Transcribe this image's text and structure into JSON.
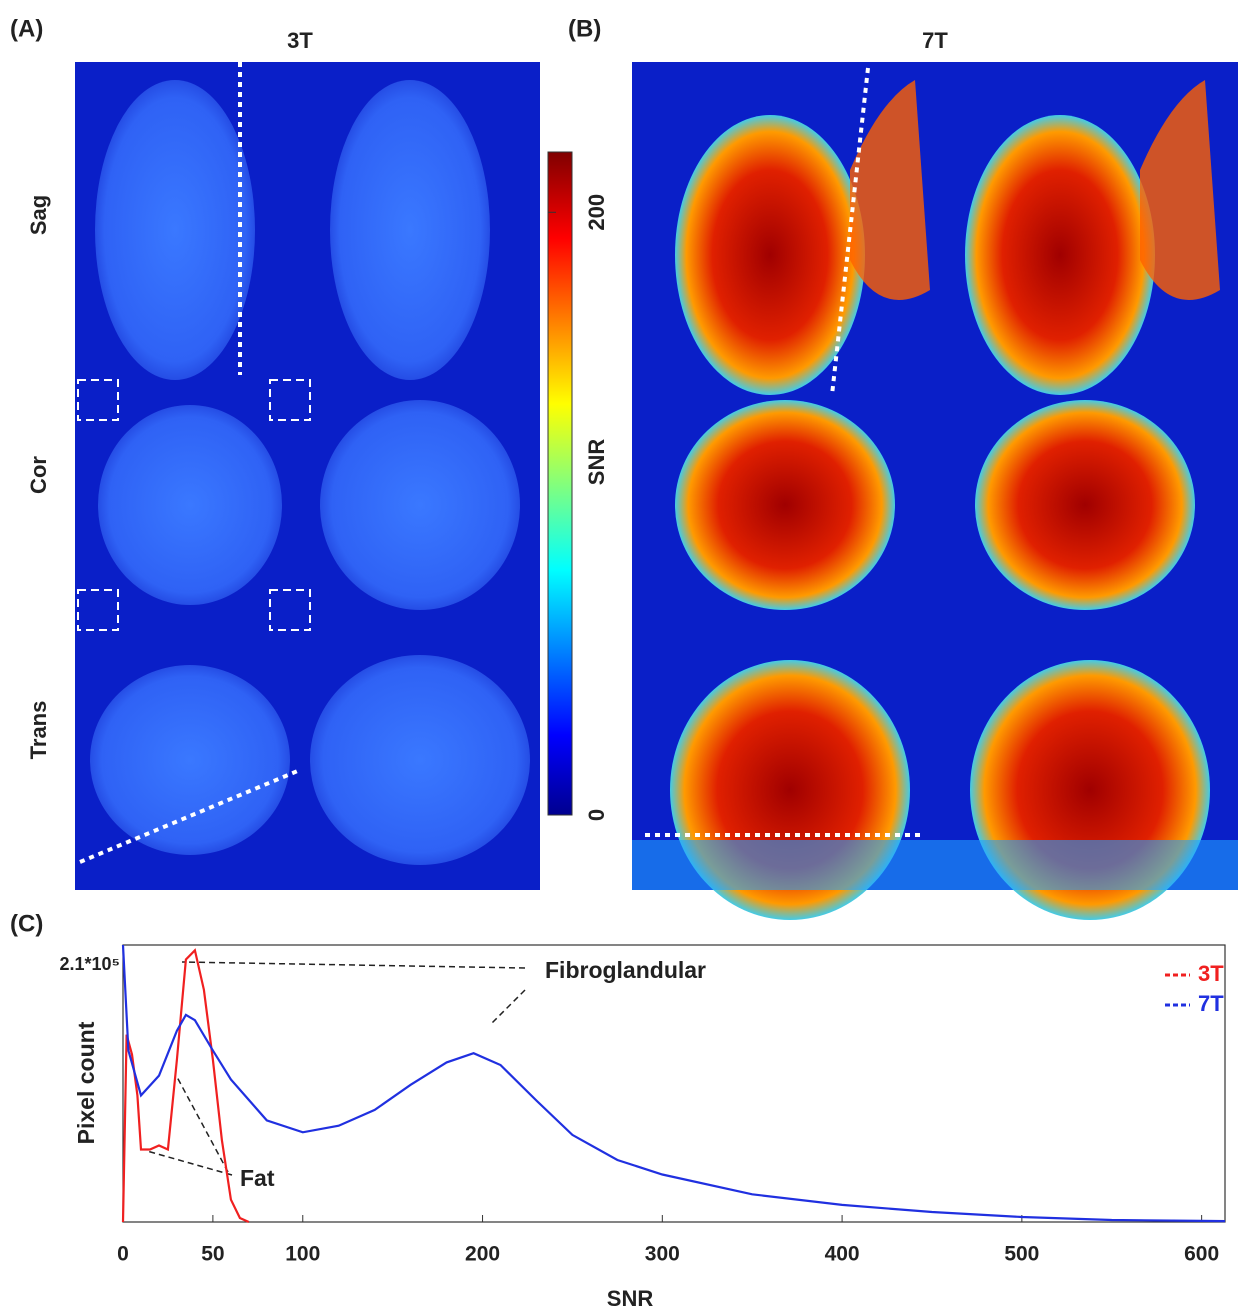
{
  "panels": {
    "a": {
      "label": "(A)",
      "title": "3T"
    },
    "b": {
      "label": "(B)",
      "title": "7T"
    },
    "c": {
      "label": "(C)"
    },
    "rows": [
      "Sag",
      "Cor",
      "Trans"
    ],
    "colorbar": {
      "label": "SNR",
      "lim": [
        0,
        220
      ],
      "ticks": [
        0,
        200
      ]
    }
  },
  "chart_data": {
    "type": "line",
    "xlabel": "SNR",
    "ylabel": "Pixel count",
    "xlim": [
      0,
      613
    ],
    "xticks": [
      0,
      50,
      100,
      200,
      300,
      400,
      500,
      600
    ],
    "ylim": [
      0,
      210000
    ],
    "yticks": [
      {
        "value": 210000,
        "label": "2.1*10⁵"
      }
    ],
    "legend": "upper right",
    "annotations": [
      "Fibroglandular",
      "Fat"
    ],
    "series": [
      {
        "name": "3T",
        "color": "#f02020",
        "x": [
          0,
          2,
          5,
          8,
          10,
          15,
          20,
          25,
          30,
          35,
          40,
          45,
          50,
          55,
          60,
          65,
          70
        ],
        "values": [
          0,
          142000,
          127000,
          96000,
          55000,
          55000,
          58000,
          55000,
          123000,
          199000,
          206000,
          176000,
          123000,
          62000,
          17000,
          3000,
          0
        ]
      },
      {
        "name": "7T",
        "color": "#2030e0",
        "x": [
          0,
          3,
          10,
          20,
          30,
          35,
          40,
          50,
          60,
          80,
          100,
          120,
          140,
          160,
          180,
          195,
          210,
          230,
          250,
          275,
          300,
          350,
          400,
          450,
          500,
          550,
          600,
          613
        ],
        "values": [
          210000,
          130000,
          96000,
          111000,
          145000,
          157000,
          153000,
          130000,
          108000,
          77000,
          68000,
          73000,
          85000,
          104000,
          121000,
          128000,
          119000,
          92000,
          66000,
          47000,
          36000,
          21000,
          13000,
          7600,
          3800,
          1500,
          800,
          700
        ]
      }
    ]
  }
}
